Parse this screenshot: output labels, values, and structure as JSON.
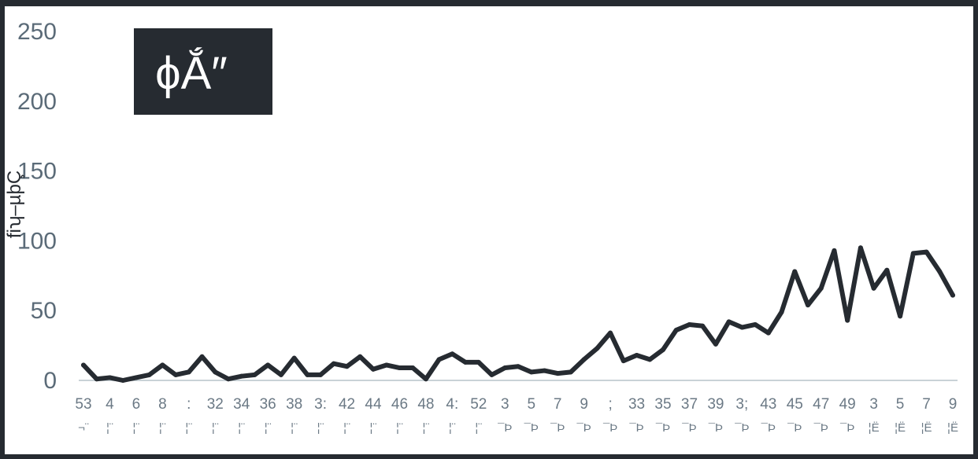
{
  "chart_data": {
    "type": "line",
    "title": "ϕẮ″",
    "ylabel": "ﬁʮ–µþÇ",
    "xlabel": "",
    "ylim": [
      0,
      250
    ],
    "yticks": [
      0,
      50,
      100,
      150,
      200,
      250
    ],
    "grid": false,
    "legend": "none",
    "x": [
      "53",
      "",
      "4",
      "",
      "6",
      "",
      "8",
      "",
      ":",
      "",
      "32",
      "",
      "34",
      "",
      "36",
      "",
      "38",
      "",
      "3:",
      "",
      "42",
      "",
      "44",
      "",
      "46",
      "",
      "48",
      "",
      "4:",
      "",
      "52",
      "",
      "3",
      "",
      "5",
      "",
      "7",
      "",
      "9",
      "",
      ";",
      "",
      "33",
      "",
      "35",
      "",
      "37",
      "",
      "39",
      "",
      "3;",
      "",
      "43",
      "",
      "45",
      "",
      "47",
      "",
      "49",
      "",
      "3",
      "",
      "5",
      "",
      "7",
      "",
      "9"
    ],
    "x2": [
      "¬¨",
      "",
      "¦¨",
      "",
      "¦¨",
      "",
      "¦¨",
      "",
      "¦¨",
      "",
      "¦¨",
      "",
      "¦¨",
      "",
      "¦¨",
      "",
      "¦¨",
      "",
      "¦¨",
      "",
      "¦¨",
      "",
      "¦¨",
      "",
      "¦¨",
      "",
      "¦¨",
      "",
      "¦¨",
      "",
      "¦¨",
      "",
      "¯Þ",
      "",
      "¯Þ",
      "",
      "¯Þ",
      "",
      "¯Þ",
      "",
      "¯Þ",
      "",
      "¯Þ",
      "",
      "¯Þ",
      "",
      "¯Þ",
      "",
      "¯Þ",
      "",
      "¯Þ",
      "",
      "¯Þ",
      "",
      "¯Þ",
      "",
      "¯Þ",
      "",
      "¯Þ",
      "",
      "¦Ë",
      "",
      "¦Ë",
      "",
      "¦Ë",
      "",
      "¦Ë"
    ],
    "series": [
      {
        "values": [
          11,
          1,
          2,
          0,
          2,
          4,
          11,
          4,
          6,
          17,
          6,
          1,
          3,
          4,
          11,
          4,
          16,
          4,
          4,
          12,
          10,
          17,
          8,
          11,
          9,
          9,
          1,
          15,
          19,
          13,
          13,
          4,
          9,
          10,
          6,
          7,
          5,
          6,
          15,
          23,
          34,
          14,
          18,
          15,
          22,
          36,
          40,
          39,
          26,
          42,
          38,
          40,
          34,
          49,
          78,
          54,
          66,
          93,
          43,
          95,
          66,
          79,
          46,
          91,
          92,
          78,
          61
        ],
        "color": "#262b31"
      }
    ],
    "colors": {
      "line": "#262b31",
      "axis": "#c9d2d7",
      "tick": "#5b6b78",
      "title_bg": "#262b31"
    }
  }
}
